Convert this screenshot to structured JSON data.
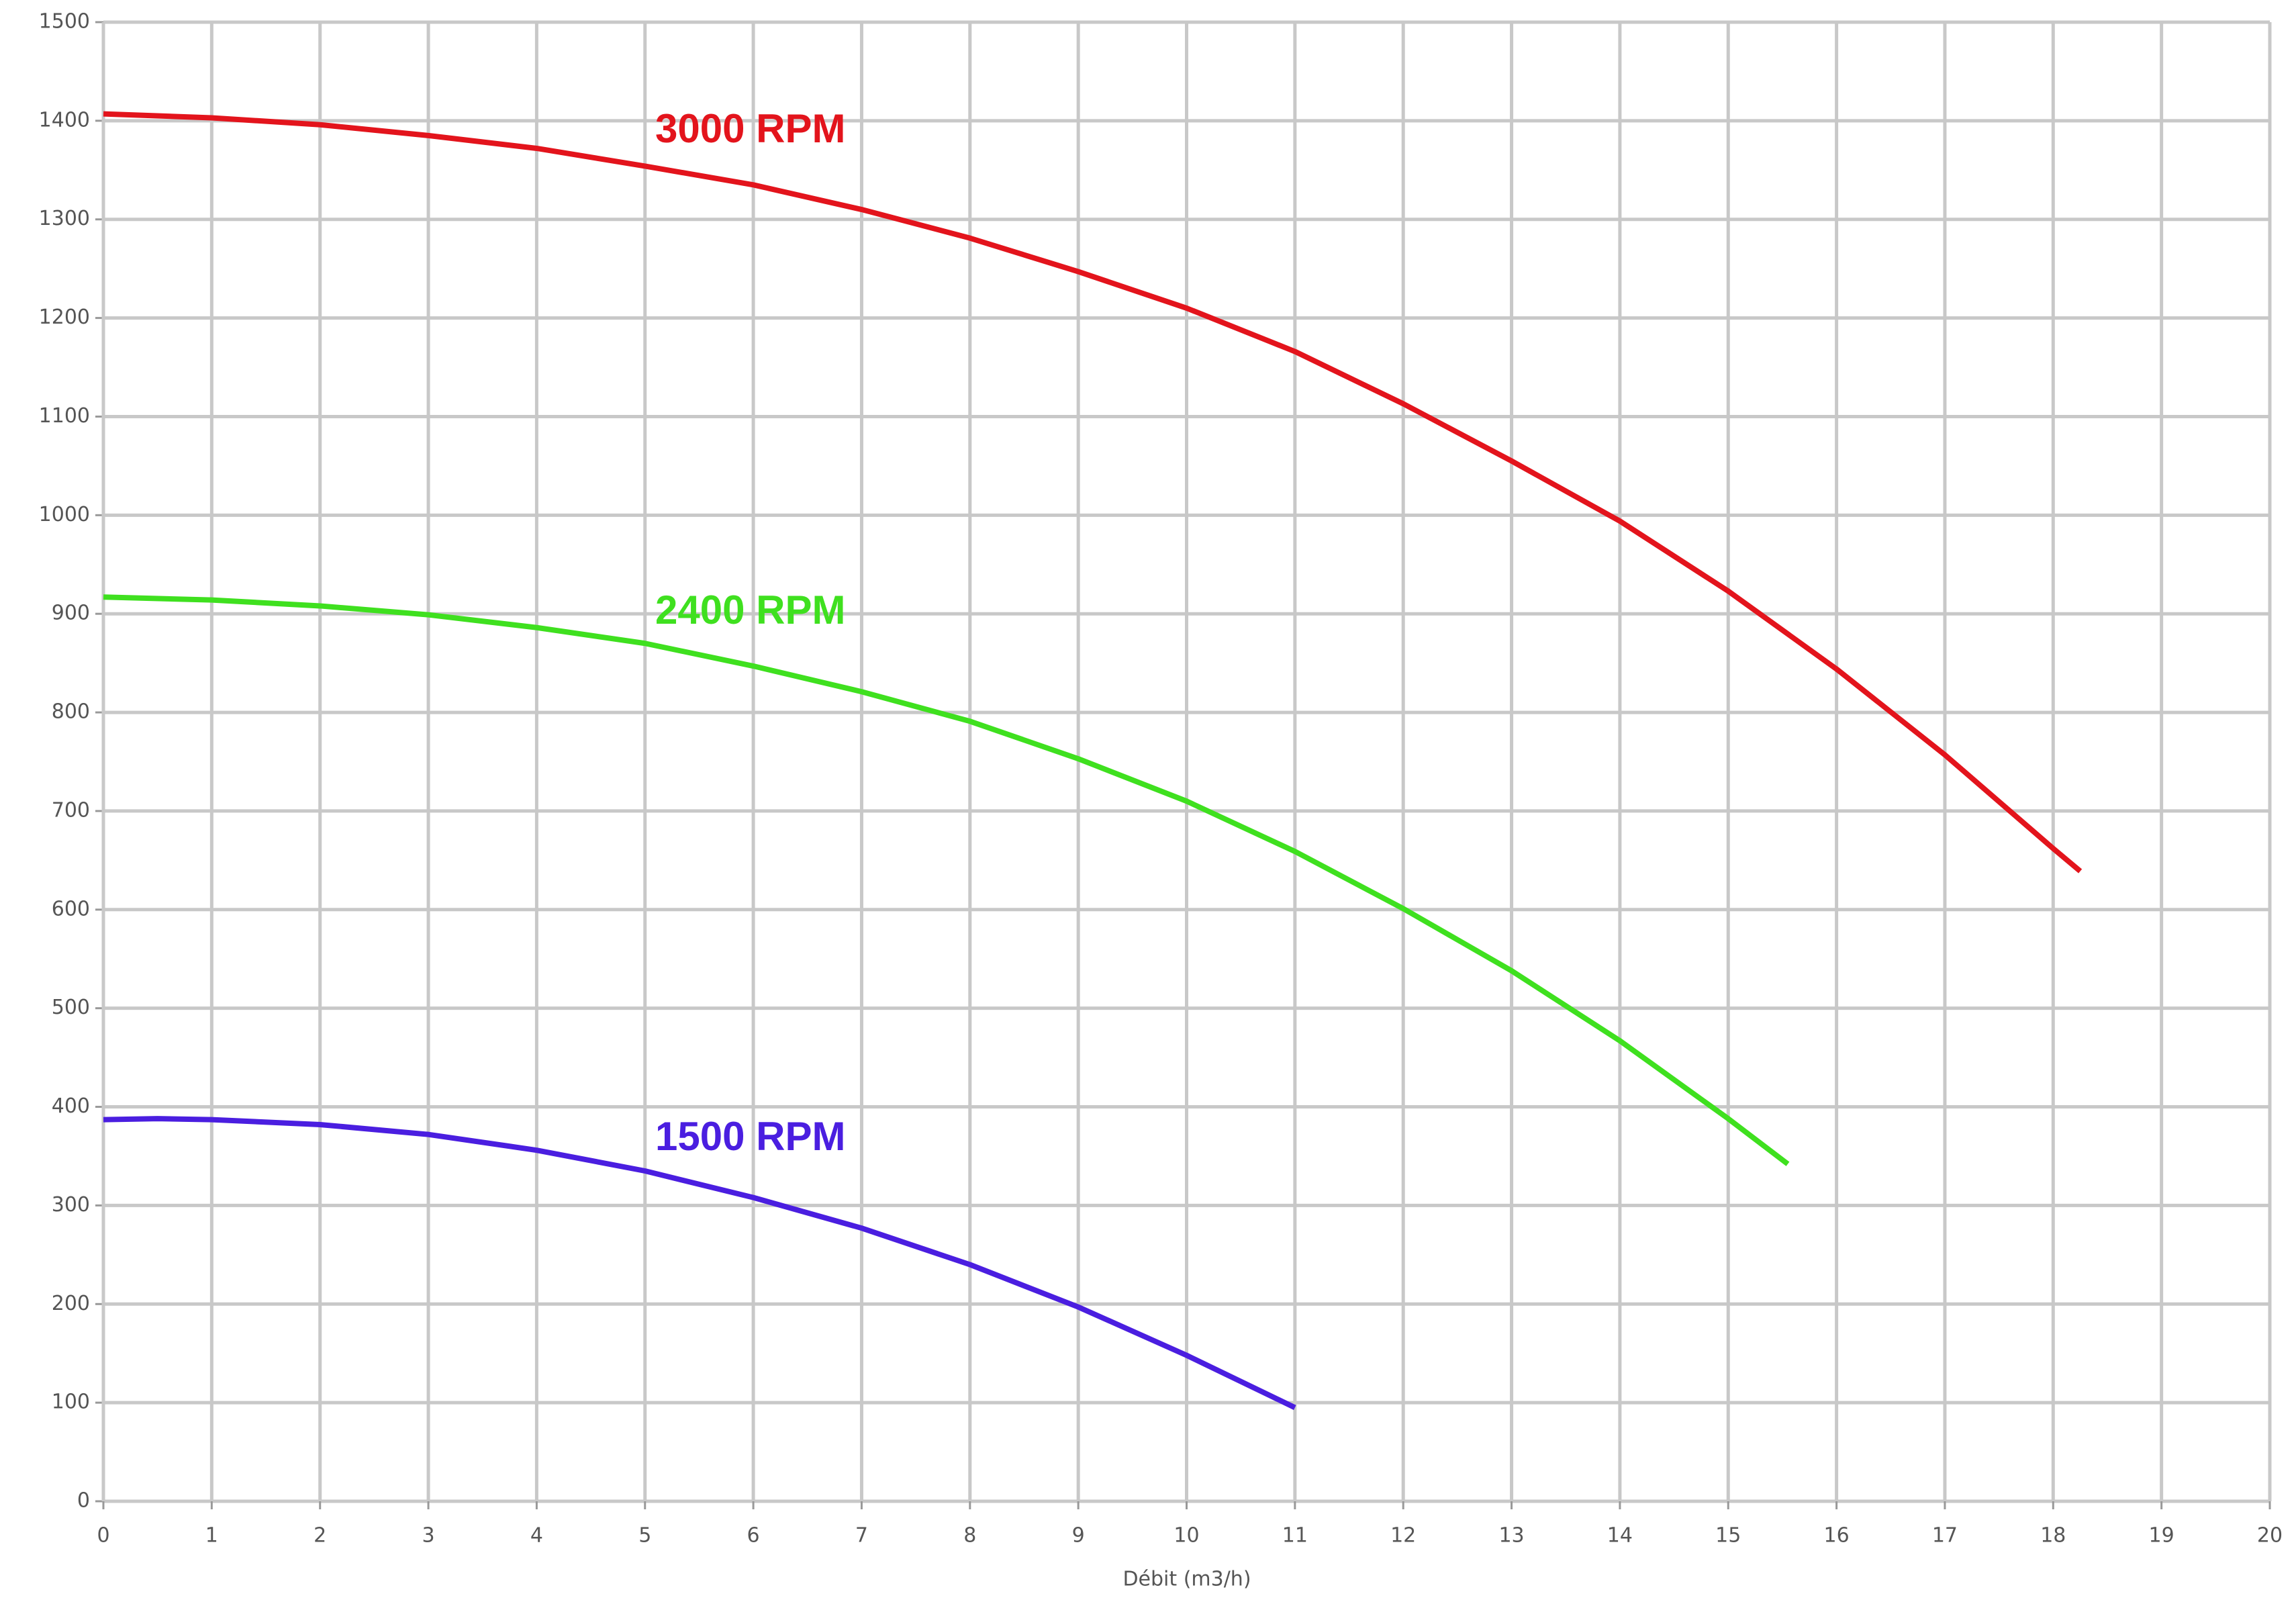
{
  "chart_data": {
    "type": "line",
    "xlabel": "Débit (m3/h)",
    "xlim": [
      0,
      20
    ],
    "xticks": [
      0,
      1,
      2,
      3,
      4,
      5,
      6,
      7,
      8,
      9,
      10,
      11,
      12,
      13,
      14,
      15,
      16,
      17,
      18,
      19,
      20
    ],
    "ylim": [
      0,
      1500
    ],
    "yticks": [
      0,
      100,
      200,
      300,
      400,
      500,
      600,
      700,
      800,
      900,
      1000,
      1100,
      1200,
      1300,
      1400,
      1500
    ],
    "grid": true,
    "series": [
      {
        "name": "3000 RPM",
        "color": "#e3141c",
        "x": [
          0,
          1,
          2,
          3,
          4,
          5,
          6,
          7,
          8,
          9,
          10,
          11,
          12,
          13,
          14,
          15,
          16,
          17,
          18,
          18.25
        ],
        "values": [
          1407,
          1403,
          1396,
          1385,
          1372,
          1354,
          1335,
          1310,
          1281,
          1247,
          1210,
          1166,
          1113,
          1055,
          994,
          923,
          844,
          757,
          662,
          639
        ]
      },
      {
        "name": "2400 RPM",
        "color": "#3fe01f",
        "x": [
          0,
          1,
          2,
          3,
          4,
          5,
          6,
          7,
          8,
          9,
          10,
          11,
          12,
          13,
          14,
          15,
          15.55
        ],
        "values": [
          917,
          914,
          908,
          899,
          886,
          870,
          847,
          821,
          791,
          753,
          710,
          659,
          601,
          538,
          467,
          388,
          342
        ]
      },
      {
        "name": "1500 RPM",
        "color": "#4a1ee0",
        "x": [
          0,
          0.5,
          1,
          2,
          3,
          4,
          5,
          6,
          7,
          8,
          9,
          10,
          11
        ],
        "values": [
          387,
          388,
          387,
          382,
          372,
          356,
          335,
          308,
          277,
          240,
          197,
          148,
          95
        ]
      }
    ]
  }
}
